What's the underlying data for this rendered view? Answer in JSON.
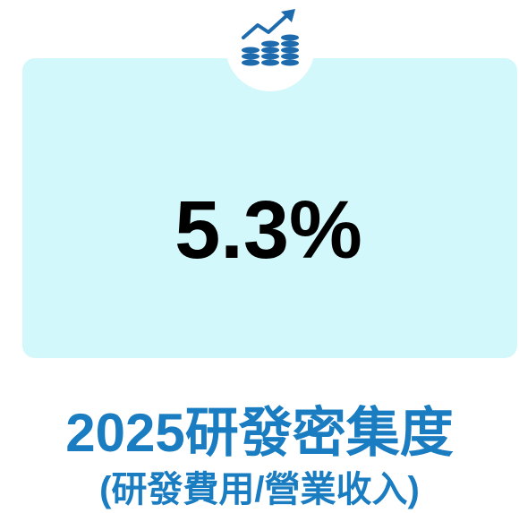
{
  "kpi": {
    "value_label": "5.3%",
    "title": "2025研發密集度",
    "subtitle": "(研發費用/營業收入)"
  }
}
